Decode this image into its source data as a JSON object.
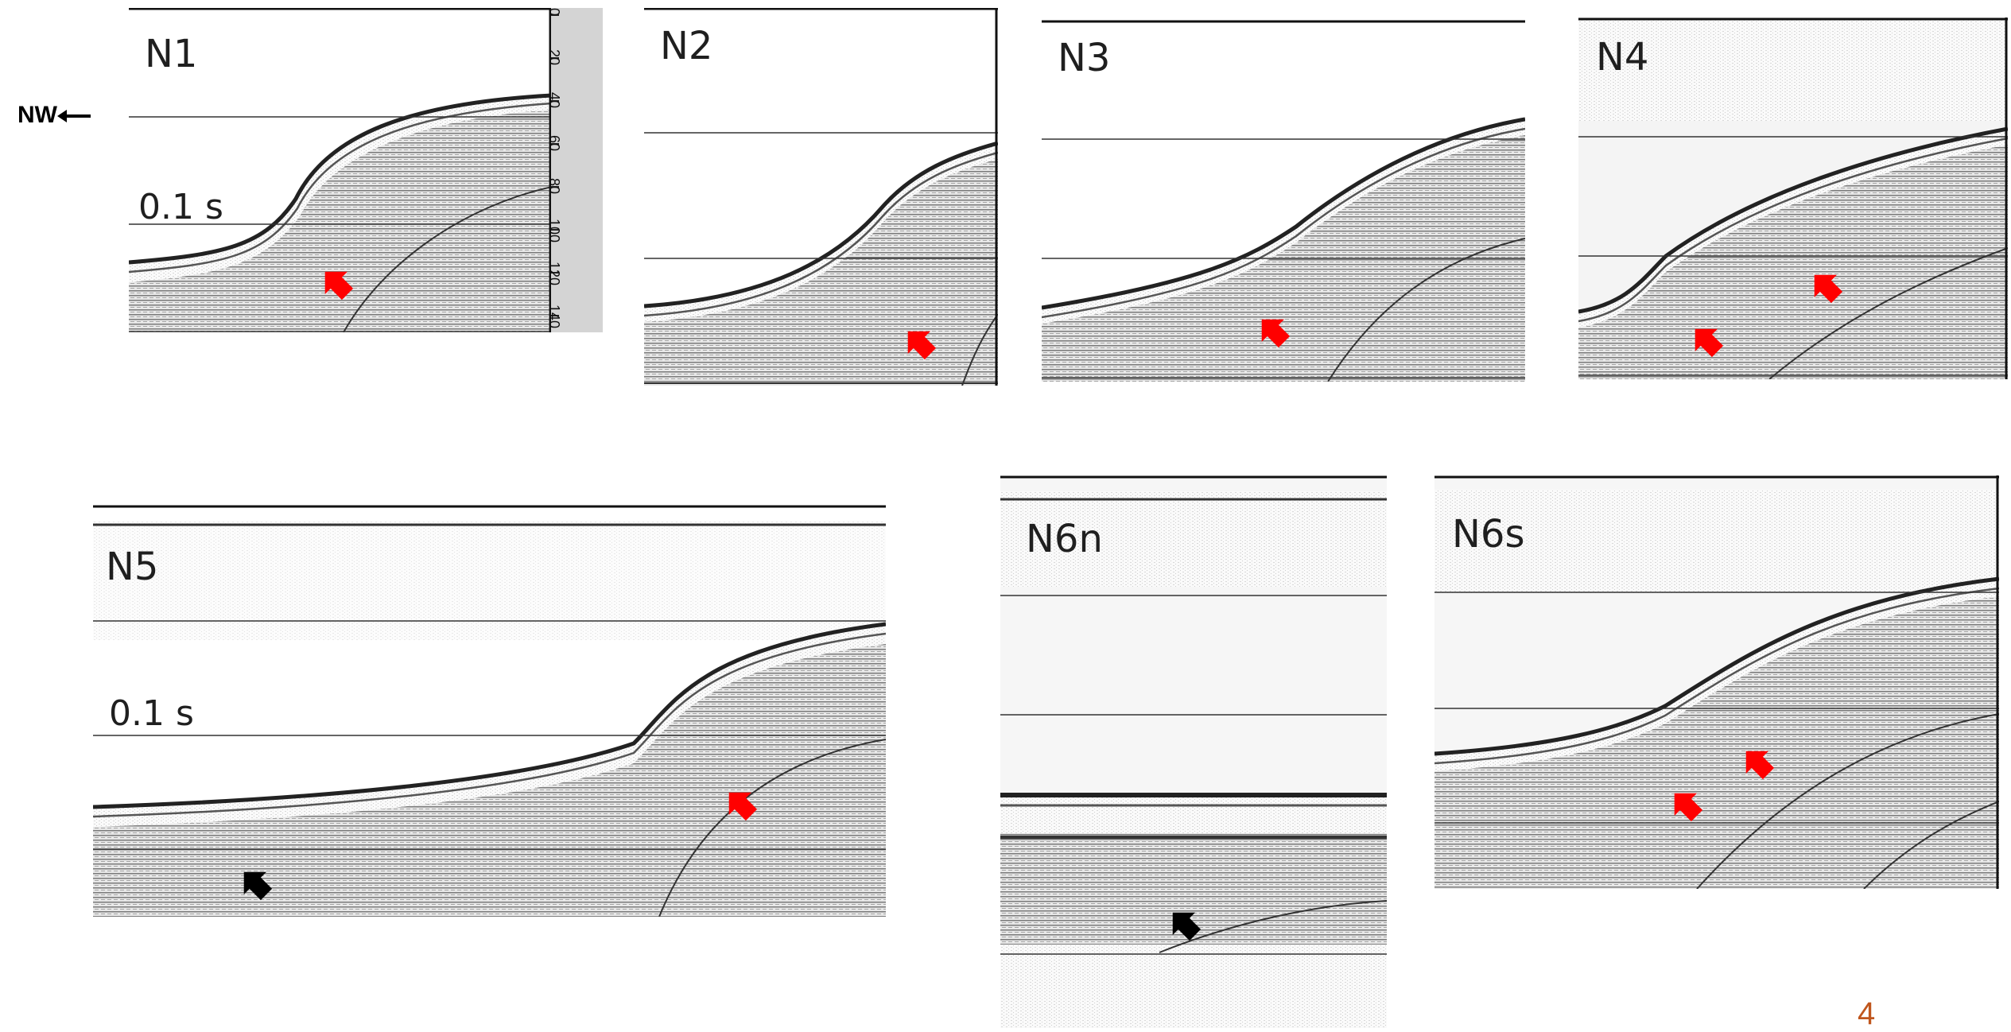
{
  "direction": {
    "label": "NW"
  },
  "page_number": "4",
  "scale": {
    "ticks": [
      "0",
      "20",
      "40",
      "60",
      "80",
      "100",
      "120",
      "140"
    ]
  },
  "panels": [
    {
      "id": "N1",
      "label": "N1",
      "time_label": "0.1 s",
      "arrows": [
        "red"
      ]
    },
    {
      "id": "N2",
      "label": "N2",
      "time_label": "",
      "arrows": [
        "red"
      ]
    },
    {
      "id": "N3",
      "label": "N3",
      "time_label": "",
      "arrows": [
        "red"
      ]
    },
    {
      "id": "N4",
      "label": "N4",
      "time_label": "",
      "arrows": [
        "red",
        "red"
      ]
    },
    {
      "id": "N5",
      "label": "N5",
      "time_label": "0.1 s",
      "arrows": [
        "red",
        "black"
      ]
    },
    {
      "id": "N6n",
      "label": "N6n",
      "time_label": "",
      "arrows": [
        "black"
      ]
    },
    {
      "id": "N6s",
      "label": "N6s",
      "time_label": "",
      "arrows": [
        "red",
        "red"
      ]
    }
  ],
  "colors": {
    "red_arrow": "#ff0000",
    "black_arrow": "#000000",
    "page_number": "#c0561d"
  }
}
